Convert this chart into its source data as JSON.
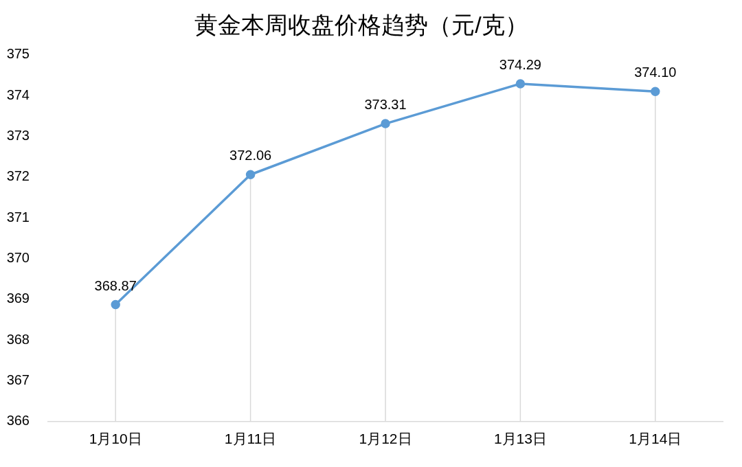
{
  "chart_data": {
    "type": "line",
    "title": "黄金本周收盘价格趋势（元/克）",
    "categories": [
      "1月10日",
      "1月11日",
      "1月12日",
      "1月13日",
      "1月14日"
    ],
    "series": [
      {
        "color": "#5b9bd5",
        "values": [
          368.87,
          372.06,
          373.31,
          374.29,
          374.1
        ],
        "value_labels": [
          "368.87",
          "372.06",
          "373.31",
          "374.29",
          "374.10"
        ]
      }
    ],
    "ylim": [
      366,
      375
    ],
    "yticks": [
      366,
      367,
      368,
      369,
      370,
      371,
      372,
      373,
      374,
      375
    ],
    "grid": "x",
    "legend": false,
    "marker": "circle",
    "line_style": "solid"
  }
}
